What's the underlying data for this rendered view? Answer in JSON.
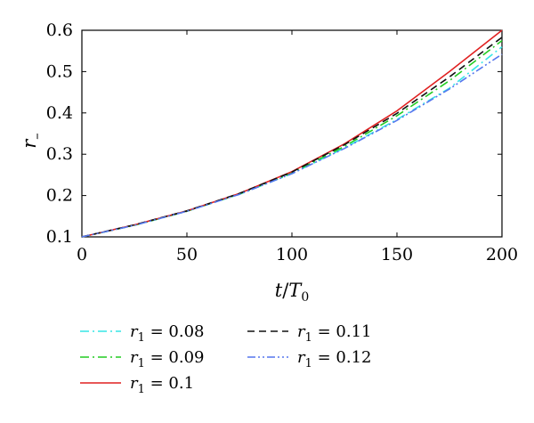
{
  "chart_data": {
    "type": "line",
    "xlabel": "t/T0",
    "ylabel": "r_",
    "xlim": [
      0,
      200
    ],
    "ylim": [
      0.1,
      0.6
    ],
    "xticks": [
      "0",
      "50",
      "100",
      "150",
      "200"
    ],
    "yticks": [
      "0.1",
      "0.2",
      "0.3",
      "0.4",
      "0.5",
      "0.6"
    ],
    "grid": false,
    "legend_position": "bottom",
    "x": [
      0,
      25,
      50,
      75,
      100,
      125,
      150,
      175,
      200
    ],
    "series": [
      {
        "name": "r1 = 0.08",
        "sub": "1",
        "value": "0.08",
        "color": "#35e6e6",
        "dash": "10 4 2 4",
        "values": [
          0.1,
          0.128,
          0.162,
          0.203,
          0.253,
          0.315,
          0.384,
          0.46,
          0.56
        ]
      },
      {
        "name": "r1 = 0.09",
        "sub": "1",
        "value": "0.09",
        "color": "#22cc22",
        "dash": "10 4 2 4",
        "values": [
          0.1,
          0.128,
          0.162,
          0.204,
          0.255,
          0.319,
          0.393,
          0.478,
          0.575
        ]
      },
      {
        "name": "r1 = 0.1",
        "sub": "1",
        "value": "0.1",
        "color": "#e02020",
        "dash": "",
        "values": [
          0.1,
          0.129,
          0.163,
          0.205,
          0.258,
          0.325,
          0.405,
          0.5,
          0.6
        ]
      },
      {
        "name": "r1 = 0.11",
        "sub": "1",
        "value": "0.11",
        "color": "#111111",
        "dash": "8 5",
        "values": [
          0.1,
          0.129,
          0.163,
          0.205,
          0.257,
          0.323,
          0.399,
          0.487,
          0.583
        ]
      },
      {
        "name": "r1 = 0.12",
        "sub": "1",
        "value": "0.12",
        "color": "#5577ee",
        "dash": "9 3 2 3 2 3",
        "values": [
          0.1,
          0.128,
          0.162,
          0.203,
          0.253,
          0.314,
          0.382,
          0.458,
          0.542
        ]
      }
    ]
  }
}
